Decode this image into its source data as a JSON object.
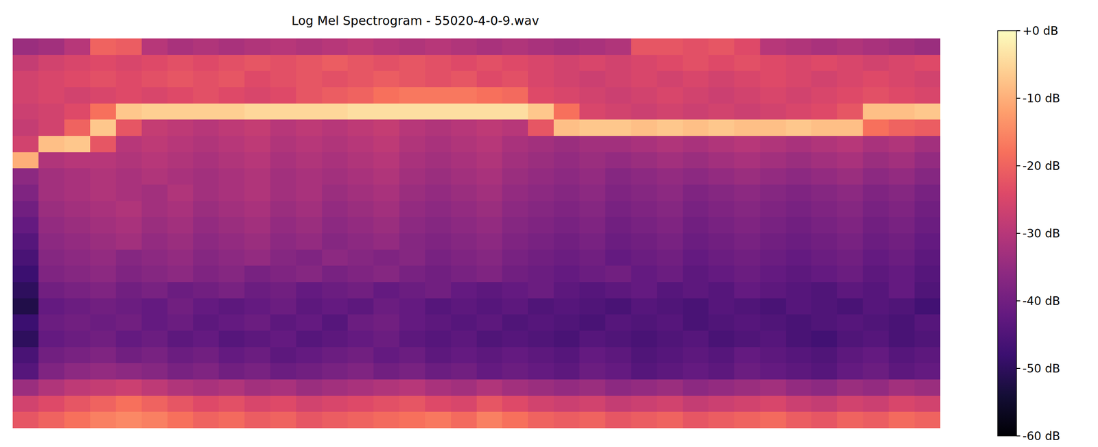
{
  "chart_data": {
    "type": "heatmap",
    "title": "Log Mel Spectrogram - 55020-4-0-9.wav",
    "color": "magma",
    "tick_labels": false,
    "grid": false,
    "colorbar": {
      "range": [
        -60,
        0
      ],
      "ticks": [
        {
          "value": 0,
          "label": "+0 dB"
        },
        {
          "value": -10,
          "label": "-10 dB"
        },
        {
          "value": -20,
          "label": "-20 dB"
        },
        {
          "value": -30,
          "label": "-30 dB"
        },
        {
          "value": -40,
          "label": "-40 dB"
        },
        {
          "value": -50,
          "label": "-50 dB"
        },
        {
          "value": -60,
          "label": "-60 dB"
        }
      ]
    },
    "z": [
      [
        -22,
        -20,
        -18,
        -16,
        -15,
        -16,
        -18,
        -20,
        -19,
        -21,
        -20,
        -22,
        -21,
        -20,
        -19,
        -18,
        -17,
        -19,
        -16,
        -18,
        -20,
        -21,
        -20,
        -22,
        -21,
        -20,
        -22,
        -21,
        -20,
        -19,
        -21,
        -22,
        -20,
        -21,
        -19,
        -20
      ],
      [
        -26,
        -24,
        -22,
        -20,
        -18,
        -20,
        -22,
        -24,
        -23,
        -25,
        -24,
        -26,
        -25,
        -24,
        -23,
        -22,
        -24,
        -25,
        -22,
        -24,
        -26,
        -27,
        -26,
        -28,
        -27,
        -26,
        -28,
        -27,
        -26,
        -25,
        -27,
        -28,
        -26,
        -27,
        -25,
        -26
      ],
      [
        -34,
        -31,
        -29,
        -28,
        -27,
        -29,
        -31,
        -32,
        -31,
        -33,
        -32,
        -34,
        -33,
        -32,
        -31,
        -30,
        -32,
        -33,
        -31,
        -33,
        -34,
        -35,
        -34,
        -36,
        -35,
        -34,
        -36,
        -35,
        -34,
        -33,
        -35,
        -36,
        -34,
        -35,
        -33,
        -34
      ],
      [
        -44,
        -38,
        -36,
        -35,
        -36,
        -37,
        -39,
        -38,
        -40,
        -39,
        -41,
        -40,
        -39,
        -38,
        -40,
        -39,
        -41,
        -40,
        -42,
        -41,
        -42,
        -43,
        -41,
        -42,
        -44,
        -43,
        -42,
        -43,
        -41,
        -42,
        -43,
        -44,
        -42,
        -41,
        -43,
        -42
      ],
      [
        -46,
        -40,
        -39,
        -38,
        -40,
        -39,
        -41,
        -40,
        -42,
        -41,
        -43,
        -42,
        -41,
        -40,
        -42,
        -41,
        -43,
        -42,
        -43,
        -42,
        -43,
        -44,
        -42,
        -43,
        -45,
        -44,
        -43,
        -44,
        -42,
        -43,
        -44,
        -45,
        -43,
        -42,
        -44,
        -43
      ],
      [
        -50,
        -42,
        -41,
        -40,
        -42,
        -41,
        -43,
        -42,
        -44,
        -43,
        -42,
        -44,
        -43,
        -42,
        -41,
        -43,
        -44,
        -43,
        -45,
        -44,
        -45,
        -46,
        -44,
        -45,
        -46,
        -45,
        -44,
        -46,
        -45,
        -44,
        -46,
        -47,
        -45,
        -44,
        -46,
        -45
      ],
      [
        -48,
        -41,
        -40,
        -41,
        -40,
        -42,
        -41,
        -43,
        -42,
        -41,
        -43,
        -42,
        -44,
        -41,
        -40,
        -42,
        -43,
        -44,
        -43,
        -45,
        -44,
        -45,
        -46,
        -44,
        -45,
        -44,
        -46,
        -45,
        -44,
        -45,
        -46,
        -45,
        -44,
        -45,
        -46,
        -44
      ],
      [
        -52,
        -42,
        -41,
        -40,
        -41,
        -42,
        -40,
        -42,
        -43,
        -42,
        -41,
        -43,
        -42,
        -43,
        -41,
        -42,
        -44,
        -43,
        -44,
        -43,
        -45,
        -44,
        -45,
        -46,
        -44,
        -45,
        -46,
        -44,
        -45,
        -46,
        -44,
        -45,
        -46,
        -44,
        -45,
        -47
      ],
      [
        -50,
        -40,
        -39,
        -38,
        -40,
        -39,
        -41,
        -40,
        -39,
        -41,
        -40,
        -42,
        -41,
        -40,
        -42,
        -41,
        -40,
        -42,
        -43,
        -42,
        -41,
        -43,
        -44,
        -43,
        -42,
        -44,
        -43,
        -44,
        -42,
        -43,
        -44,
        -45,
        -43,
        -44,
        -42,
        -45
      ],
      [
        -48,
        -38,
        -37,
        -36,
        -38,
        -37,
        -36,
        -38,
        -37,
        -39,
        -38,
        -37,
        -39,
        -38,
        -37,
        -39,
        -40,
        -39,
        -38,
        -40,
        -41,
        -42,
        -41,
        -40,
        -42,
        -41,
        -43,
        -42,
        -41,
        -42,
        -43,
        -42,
        -41,
        -43,
        -42,
        -44
      ],
      [
        -46,
        -37,
        -36,
        -35,
        -37,
        -36,
        -35,
        -37,
        -36,
        -35,
        -37,
        -38,
        -36,
        -37,
        -38,
        -37,
        -39,
        -38,
        -37,
        -39,
        -40,
        -41,
        -40,
        -42,
        -41,
        -40,
        -42,
        -41,
        -40,
        -41,
        -42,
        -41,
        -40,
        -42,
        -41,
        -43
      ],
      [
        -44,
        -36,
        -35,
        -34,
        -33,
        -35,
        -34,
        -36,
        -35,
        -34,
        -36,
        -35,
        -37,
        -36,
        -35,
        -37,
        -38,
        -37,
        -36,
        -38,
        -39,
        -40,
        -39,
        -41,
        -40,
        -39,
        -41,
        -40,
        -39,
        -40,
        -41,
        -40,
        -39,
        -41,
        -40,
        -42
      ],
      [
        -42,
        -35,
        -34,
        -33,
        -32,
        -34,
        -33,
        -35,
        -34,
        -33,
        -35,
        -34,
        -36,
        -35,
        -34,
        -36,
        -37,
        -36,
        -35,
        -37,
        -38,
        -39,
        -38,
        -40,
        -39,
        -38,
        -40,
        -39,
        -38,
        -39,
        -40,
        -39,
        -38,
        -40,
        -39,
        -41
      ],
      [
        -40,
        -34,
        -33,
        -32,
        -31,
        -33,
        -32,
        -34,
        -33,
        -32,
        -34,
        -33,
        -35,
        -34,
        -33,
        -35,
        -36,
        -35,
        -34,
        -36,
        -37,
        -38,
        -37,
        -39,
        -38,
        -37,
        -39,
        -38,
        -37,
        -38,
        -39,
        -38,
        -37,
        -39,
        -38,
        -40
      ],
      [
        -38,
        -33,
        -32,
        -31,
        -32,
        -33,
        -31,
        -33,
        -32,
        -31,
        -33,
        -32,
        -34,
        -33,
        -32,
        -34,
        -35,
        -34,
        -33,
        -35,
        -36,
        -37,
        -36,
        -38,
        -37,
        -36,
        -38,
        -37,
        -36,
        -37,
        -38,
        -37,
        -36,
        -38,
        -37,
        -39
      ],
      [
        -36,
        -33,
        -32,
        -31,
        -32,
        -31,
        -32,
        -33,
        -32,
        -31,
        -33,
        -32,
        -33,
        -32,
        -31,
        -33,
        -34,
        -33,
        -32,
        -34,
        -35,
        -36,
        -35,
        -37,
        -36,
        -35,
        -36,
        -35,
        -34,
        -35,
        -36,
        -35,
        -34,
        -36,
        -35,
        -37
      ],
      [
        -10,
        -31,
        -30,
        -30,
        -31,
        -30,
        -31,
        -32,
        -31,
        -30,
        -32,
        -31,
        -32,
        -31,
        -30,
        -32,
        -33,
        -32,
        -31,
        -33,
        -34,
        -35,
        -34,
        -35,
        -34,
        -33,
        -34,
        -33,
        -32,
        -33,
        -34,
        -33,
        -32,
        -34,
        -33,
        -35
      ],
      [
        -26,
        -8,
        -7,
        -22,
        -30,
        -29,
        -30,
        -31,
        -30,
        -29,
        -31,
        -30,
        -31,
        -30,
        -29,
        -31,
        -32,
        -31,
        -30,
        -32,
        -33,
        -34,
        -33,
        -33,
        -32,
        -31,
        -32,
        -31,
        -30,
        -31,
        -32,
        -31,
        -30,
        -32,
        -31,
        -33
      ],
      [
        -28,
        -26,
        -20,
        -7,
        -22,
        -28,
        -29,
        -30,
        -29,
        -28,
        -30,
        -29,
        -30,
        -29,
        -28,
        -30,
        -31,
        -30,
        -29,
        -30,
        -22,
        -8,
        -7,
        -7,
        -8,
        -7,
        -8,
        -7,
        -8,
        -8,
        -7,
        -8,
        -8,
        -18,
        -20,
        -21
      ],
      [
        -27,
        -26,
        -24,
        -18,
        -7,
        -6,
        -6,
        -6,
        -6,
        -5,
        -5,
        -5,
        -5,
        -4,
        -4,
        -4,
        -4,
        -4,
        -4,
        -4,
        -7,
        -18,
        -25,
        -26,
        -27,
        -26,
        -27,
        -26,
        -27,
        -26,
        -25,
        -24,
        -22,
        -8,
        -8,
        -7
      ],
      [
        -26,
        -25,
        -26,
        -25,
        -24,
        -25,
        -24,
        -23,
        -24,
        -25,
        -24,
        -22,
        -21,
        -20,
        -18,
        -17,
        -17,
        -17,
        -18,
        -19,
        -24,
        -25,
        -26,
        -27,
        -26,
        -25,
        -26,
        -27,
        -26,
        -25,
        -26,
        -25,
        -24,
        -23,
        -24,
        -25
      ],
      [
        -26,
        -25,
        -24,
        -23,
        -24,
        -23,
        -22,
        -23,
        -22,
        -24,
        -23,
        -22,
        -23,
        -22,
        -21,
        -22,
        -23,
        -22,
        -24,
        -23,
        -25,
        -26,
        -27,
        -26,
        -25,
        -26,
        -25,
        -26,
        -25,
        -24,
        -25,
        -26,
        -25,
        -24,
        -25,
        -26
      ],
      [
        -28,
        -26,
        -25,
        -24,
        -25,
        -24,
        -23,
        -24,
        -23,
        -22,
        -23,
        -22,
        -21,
        -22,
        -23,
        -22,
        -23,
        -24,
        -23,
        -24,
        -25,
        -26,
        -25,
        -26,
        -25,
        -24,
        -23,
        -24,
        -23,
        -24,
        -25,
        -24,
        -25,
        -26,
        -25,
        -24
      ],
      [
        -34,
        -33,
        -30,
        -20,
        -21,
        -30,
        -32,
        -31,
        -32,
        -31,
        -30,
        -31,
        -30,
        -29,
        -30,
        -31,
        -30,
        -31,
        -32,
        -31,
        -32,
        -33,
        -32,
        -31,
        -22,
        -22,
        -23,
        -22,
        -24,
        -30,
        -31,
        -32,
        -31,
        -32,
        -33,
        -34
      ]
    ]
  }
}
